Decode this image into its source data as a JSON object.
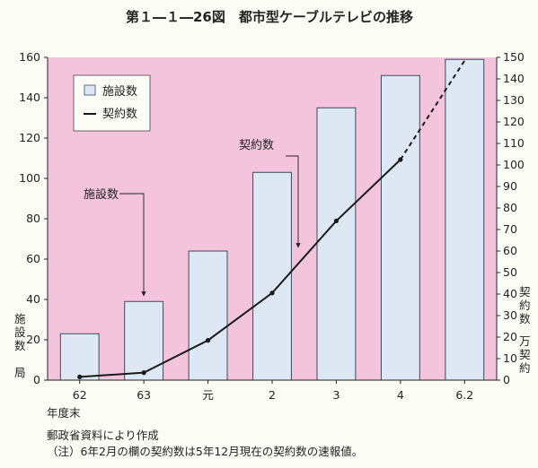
{
  "chart_data": {
    "type": "bar",
    "title": "第１―１―26図　都市型ケーブルテレビの推移",
    "categories": [
      "62",
      "63",
      "元",
      "2",
      "3",
      "4",
      "6.2"
    ],
    "x_note": "年度末",
    "series": [
      {
        "name": "施設数",
        "type": "bar",
        "axis": "left",
        "values": [
          23,
          39,
          64,
          103,
          135,
          151,
          159
        ]
      },
      {
        "name": "契約数",
        "type": "line",
        "axis": "right",
        "values": [
          1.5,
          3.5,
          18.5,
          40.5,
          74,
          102.5,
          148.5
        ],
        "dashed_last_segment": true
      }
    ],
    "left_axis": {
      "label": "施設数　局",
      "ticks": [
        "0",
        "20",
        "40",
        "60",
        "80",
        "100",
        "120",
        "140",
        "160"
      ],
      "ylim": [
        0,
        160
      ]
    },
    "right_axis": {
      "label": "契約数　万契約",
      "ticks": [
        "0",
        "10",
        "20",
        "30",
        "40",
        "50",
        "60",
        "70",
        "80",
        "90",
        "100",
        "110",
        "120",
        "130",
        "140",
        "150"
      ],
      "ylim": [
        0,
        150
      ]
    },
    "legend": {
      "position": "top-left",
      "items": [
        "施設数",
        "契約数"
      ]
    },
    "annotations": [
      "施設数",
      "契約数"
    ],
    "grid": false
  },
  "colors": {
    "plot_bg": "#f4c4dc",
    "bar_fill": "#dde8f4",
    "bar_stroke": "#3a4a5c",
    "line": "#1a1a1a"
  },
  "notes": {
    "source": "郵政省資料により作成",
    "note": "（注）6年2月の欄の契約数は5年12月現在の契約数の速報値。"
  }
}
